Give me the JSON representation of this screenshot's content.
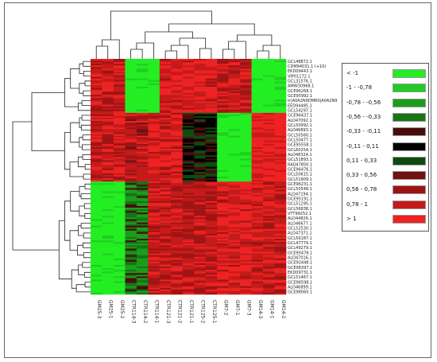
{
  "chart_data": {
    "type": "heatmap",
    "title": "",
    "columns": [
      "GM25-3",
      "GM25-1",
      "GM25-2",
      "CTR114-3",
      "CTR114-2",
      "CTR114-1",
      "CTR121-3",
      "CTR121-2",
      "CTR121-1",
      "CTR125-2",
      "CTR125-1",
      "GM7-2",
      "GM7-1",
      "GM7-3",
      "GM14-3",
      "GM14-1",
      "GM14-2"
    ],
    "row_labels": [
      "GCL48872.1",
      "CDM94031.1 (+10)",
      "EKD09443.1",
      "VIP01172.1",
      "GCL31576.1",
      "AMW30968.1",
      "GCE96268.1",
      "GCE95992.1",
      "tr|A0A2N9DMR0|A0A2N9",
      "EED94485.1",
      "GCL54297.1",
      "GCE96437.1",
      "ALO47092.1",
      "GCL50992.1",
      "ALO46893.1",
      "GCL50560.1",
      "GCL50477.1",
      "GCE95558.1",
      "GCL60254.1",
      "ALO48324.1",
      "GCL51893.1",
      "RAQ47850.1",
      "GCE96476.1",
      "GCL50615.1",
      "GCL51909.1",
      "GCE96231.1",
      "GCL50548.1",
      "ALO47194.1",
      "GCE95191.1",
      "GCL51295.1",
      "GCL56838.1",
      "VTT99252.1",
      "ALO44826.1",
      "ALO46677.1",
      "GCL52530.1",
      "ALO47371.1",
      "GCL50187.1",
      "GCL47779.1",
      "GCL49279.1",
      "GCE95478.1",
      "ALO47016.1",
      "GCE92448.1",
      "GCE98397.1",
      "EKD09731.1",
      "GCL51467.1",
      "GCE96598.1",
      "ALO46899.1",
      "GCE98060.1"
    ],
    "legend": {
      "position": "right",
      "entries": [
        {
          "label": "< -1",
          "color": "#22ee22"
        },
        {
          "label": "-1 - -0,78",
          "color": "#22cc22"
        },
        {
          "label": "-0,78 - -0,56",
          "color": "#1a9e1a"
        },
        {
          "label": "-0,56 - -0,33",
          "color": "#157515"
        },
        {
          "label": "-0,33 - -0,11",
          "color": "#4a0c0c"
        },
        {
          "label": "-0,11 - 0,11",
          "color": "#000000"
        },
        {
          "label": "0,11 - 0,33",
          "color": "#0f4a0f"
        },
        {
          "label": "0,33 - 0,56",
          "color": "#701010"
        },
        {
          "label": "0,56 - 0,78",
          "color": "#9e1414"
        },
        {
          "label": "0,78 - 1",
          "color": "#c41a1a"
        },
        {
          "label": "> 1",
          "color": "#ee2222"
        }
      ]
    },
    "value_blocks": [
      {
        "rows": [
          0,
          11
        ],
        "cols": [
          0,
          3
        ],
        "value": 0.85
      },
      {
        "rows": [
          0,
          11
        ],
        "cols": [
          3,
          6
        ],
        "value": -1.2
      },
      {
        "rows": [
          0,
          11
        ],
        "cols": [
          6,
          11
        ],
        "value": 1.0
      },
      {
        "rows": [
          0,
          11
        ],
        "cols": [
          11,
          14
        ],
        "value": 0.9
      },
      {
        "rows": [
          0,
          11
        ],
        "cols": [
          14,
          17
        ],
        "value": -1.2
      },
      {
        "rows": [
          11,
          25
        ],
        "cols": [
          0,
          3
        ],
        "value": 0.9
      },
      {
        "rows": [
          11,
          25
        ],
        "cols": [
          3,
          5
        ],
        "value": 0.8
      },
      {
        "rows": [
          11,
          25
        ],
        "cols": [
          5,
          8
        ],
        "value": 1.0
      },
      {
        "rows": [
          11,
          25
        ],
        "cols": [
          8,
          11
        ],
        "value": 0.0
      },
      {
        "rows": [
          11,
          25
        ],
        "cols": [
          11,
          14
        ],
        "value": -1.2
      },
      {
        "rows": [
          11,
          25
        ],
        "cols": [
          14,
          17
        ],
        "value": 1.1
      },
      {
        "rows": [
          25,
          48
        ],
        "cols": [
          0,
          3
        ],
        "value": -1.2
      },
      {
        "rows": [
          25,
          48
        ],
        "cols": [
          3,
          5
        ],
        "value": -0.5
      },
      {
        "rows": [
          25,
          48
        ],
        "cols": [
          5,
          11
        ],
        "value": 0.85
      },
      {
        "rows": [
          25,
          48
        ],
        "cols": [
          11,
          14
        ],
        "value": 1.0
      },
      {
        "rows": [
          25,
          48
        ],
        "cols": [
          14,
          17
        ],
        "value": 0.9
      }
    ]
  }
}
